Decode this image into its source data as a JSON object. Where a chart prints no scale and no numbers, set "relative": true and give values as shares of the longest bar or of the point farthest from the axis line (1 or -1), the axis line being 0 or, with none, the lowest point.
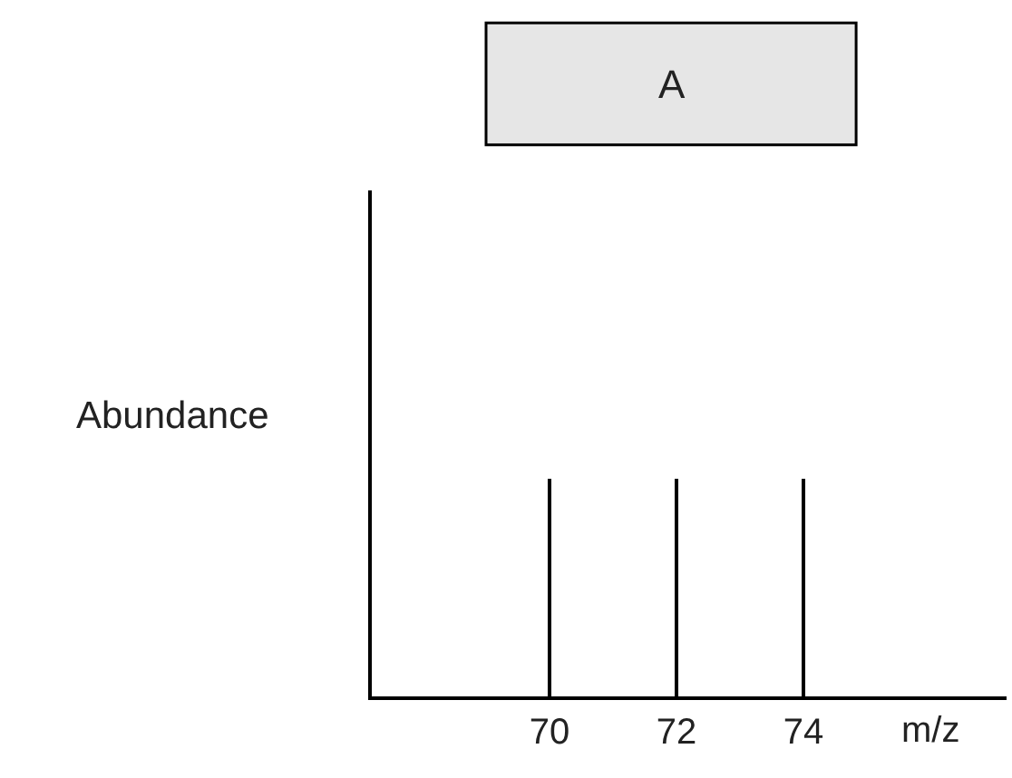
{
  "chart_data": {
    "type": "bar",
    "title": "A",
    "xlabel": "m/z",
    "ylabel": "Abundance",
    "x": [
      70,
      72,
      74
    ],
    "values": [
      1,
      1,
      1
    ],
    "color": "#000000",
    "relative": true,
    "xlim": [
      67.2,
      77.2
    ],
    "xticks": [
      70,
      72,
      74
    ],
    "legend": false
  }
}
